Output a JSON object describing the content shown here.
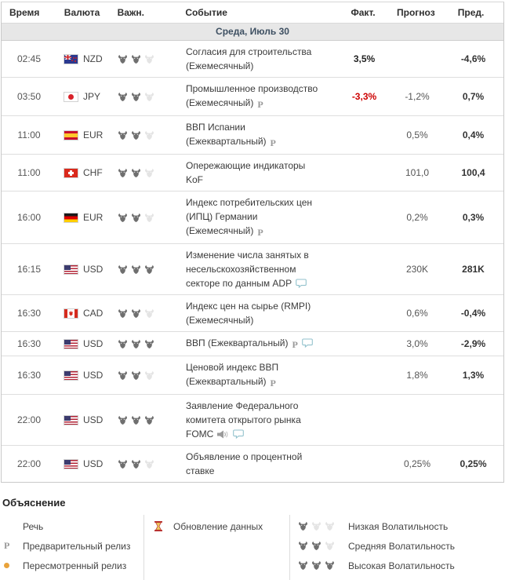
{
  "calendar": {
    "columns": [
      "Время",
      "Валюта",
      "Важн.",
      "Событие",
      "Факт.",
      "Прогноз",
      "Пред."
    ],
    "date_header": "Среда, Июль 30",
    "rows": [
      {
        "time": "02:45",
        "currency": "NZD",
        "flag": "nzd",
        "volatility": 2,
        "event": "Согласия для строительства (Ежемесячный)",
        "icons": [],
        "actual": "3,5%",
        "actual_negative": false,
        "forecast": "",
        "previous": "-4,6%"
      },
      {
        "time": "03:50",
        "currency": "JPY",
        "flag": "jpy",
        "volatility": 2,
        "event": "Промышленное производство (Ежемесячный)",
        "icons": [
          "preliminary"
        ],
        "actual": "-3,3%",
        "actual_negative": true,
        "forecast": "-1,2%",
        "previous": "0,7%"
      },
      {
        "time": "11:00",
        "currency": "EUR",
        "flag": "esp",
        "volatility": 2,
        "event": "ВВП Испании (Ежеквартальный)",
        "icons": [
          "preliminary"
        ],
        "actual": "",
        "actual_negative": false,
        "forecast": "0,5%",
        "previous": "0,4%"
      },
      {
        "time": "11:00",
        "currency": "CHF",
        "flag": "chf",
        "volatility": 2,
        "event": "Опережающие индикаторы KoF",
        "icons": [],
        "actual": "",
        "actual_negative": false,
        "forecast": "101,0",
        "previous": "100,4"
      },
      {
        "time": "16:00",
        "currency": "EUR",
        "flag": "deu",
        "volatility": 2,
        "event": "Индекс потребительских цен (ИПЦ) Германии (Ежемесячный)",
        "icons": [
          "preliminary"
        ],
        "actual": "",
        "actual_negative": false,
        "forecast": "0,2%",
        "previous": "0,3%"
      },
      {
        "time": "16:15",
        "currency": "USD",
        "flag": "usa",
        "volatility": 3,
        "event": "Изменение числа занятых в несельскохозяйственном секторе по данным ADP",
        "icons": [
          "comment"
        ],
        "actual": "",
        "actual_negative": false,
        "forecast": "230K",
        "previous": "281K"
      },
      {
        "time": "16:30",
        "currency": "CAD",
        "flag": "cad",
        "volatility": 2,
        "event": "Индекс цен на сырье (RMPI) (Ежемесячный)",
        "icons": [],
        "actual": "",
        "actual_negative": false,
        "forecast": "0,6%",
        "previous": "-0,4%"
      },
      {
        "time": "16:30",
        "currency": "USD",
        "flag": "usa",
        "volatility": 3,
        "event": "ВВП (Ежеквартальный)",
        "icons": [
          "preliminary",
          "comment"
        ],
        "actual": "",
        "actual_negative": false,
        "forecast": "3,0%",
        "previous": "-2,9%"
      },
      {
        "time": "16:30",
        "currency": "USD",
        "flag": "usa",
        "volatility": 2,
        "event": "Ценовой индекс ВВП (Ежеквартальный)",
        "icons": [
          "preliminary"
        ],
        "actual": "",
        "actual_negative": false,
        "forecast": "1,8%",
        "previous": "1,3%"
      },
      {
        "time": "22:00",
        "currency": "USD",
        "flag": "usa",
        "volatility": 3,
        "event": "Заявление Федерального комитета открытого рынка FOMC",
        "icons": [
          "speech",
          "comment"
        ],
        "actual": "",
        "actual_negative": false,
        "forecast": "",
        "previous": ""
      },
      {
        "time": "22:00",
        "currency": "USD",
        "flag": "usa",
        "volatility": 2,
        "event": "Объявление о процентной ставке",
        "icons": [],
        "actual": "",
        "actual_negative": false,
        "forecast": "0,25%",
        "previous": "0,25%"
      }
    ]
  },
  "legend": {
    "title": "Объяснение",
    "col1": [
      {
        "icon": "speech",
        "label": "Речь"
      },
      {
        "icon": "preliminary",
        "label": "Предварительный релиз"
      },
      {
        "icon": "revised-dot",
        "label": "Пересмотренный релиз"
      }
    ],
    "col2": [
      {
        "icon": "hourglass",
        "label": "Обновление данных"
      }
    ],
    "col3": [
      {
        "volatility": 1,
        "label": "Низкая Волатильность"
      },
      {
        "volatility": 2,
        "label": "Средняя Волатильность"
      },
      {
        "volatility": 3,
        "label": "Высокая Волатильность"
      }
    ]
  },
  "icon_glyphs": {
    "preliminary": "P"
  },
  "colors": {
    "actual_negative": "#cc0000",
    "date_text": "#3e5062",
    "date_bg": "#e7e7e7",
    "bull_active": "#6f6f6f",
    "bull_inactive": "#e4e4e4",
    "revised_dot": "#e9a33b",
    "comment_stroke": "#93c2cd",
    "hourglass_frame": "#b8312f",
    "hourglass_sand": "#edc95d"
  }
}
